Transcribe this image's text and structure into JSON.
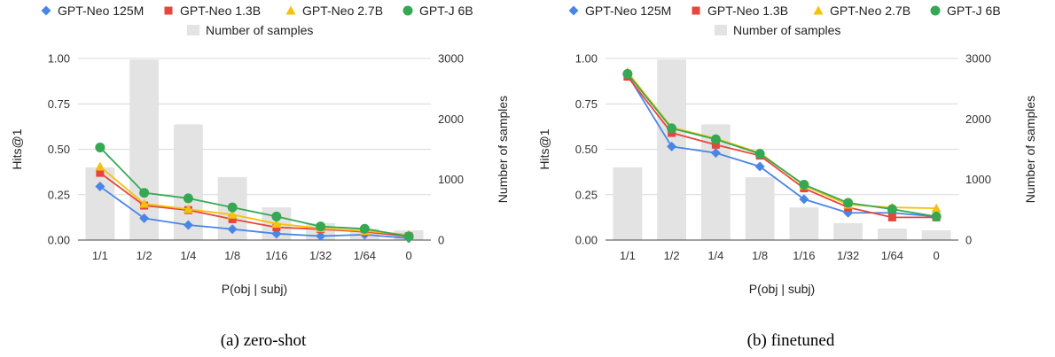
{
  "chart_data": [
    {
      "type": "bar+line",
      "caption": "(a) zero-shot",
      "categories": [
        "1/1",
        "1/2",
        "1/4",
        "1/8",
        "1/16",
        "1/32",
        "1/64",
        "0"
      ],
      "xlabel": "P(obj | subj)",
      "ylabel_left": "Hits@1",
      "ylabel_right": "Number of samples",
      "ylim_left": [
        0,
        1
      ],
      "ylim_right": [
        0,
        3000
      ],
      "yticks_left": [
        "0.00",
        "0.25",
        "0.50",
        "0.75",
        "1.00"
      ],
      "yticks_right": [
        "0",
        "1000",
        "2000",
        "3000"
      ],
      "bar_series": {
        "name": "Number of samples",
        "color": "#e3e3e3",
        "values": [
          1200,
          2980,
          1910,
          1040,
          540,
          280,
          190,
          160
        ]
      },
      "series": [
        {
          "name": "GPT-Neo 125M",
          "color": "#4a86e8",
          "marker": "diamond",
          "values": [
            0.295,
            0.12,
            0.083,
            0.06,
            0.035,
            0.022,
            0.03,
            0.01
          ]
        },
        {
          "name": "GPT-Neo 1.3B",
          "color": "#e8453c",
          "marker": "square",
          "values": [
            0.37,
            0.19,
            0.165,
            0.115,
            0.07,
            0.06,
            0.045,
            0.02
          ]
        },
        {
          "name": "GPT-Neo 2.7B",
          "color": "#f4c20d",
          "marker": "triangle",
          "values": [
            0.405,
            0.2,
            0.17,
            0.14,
            0.09,
            0.065,
            0.05,
            0.03
          ]
        },
        {
          "name": "GPT-J 6B",
          "color": "#34a853",
          "marker": "circle",
          "values": [
            0.51,
            0.26,
            0.23,
            0.18,
            0.13,
            0.075,
            0.062,
            0.02
          ]
        }
      ],
      "legend": "top"
    },
    {
      "type": "bar+line",
      "caption": "(b) finetuned",
      "categories": [
        "1/1",
        "1/2",
        "1/4",
        "1/8",
        "1/16",
        "1/32",
        "1/64",
        "0"
      ],
      "xlabel": "P(obj | subj)",
      "ylabel_left": "Hits@1",
      "ylabel_right": "Number of samples",
      "ylim_left": [
        0,
        1
      ],
      "ylim_right": [
        0,
        3000
      ],
      "yticks_left": [
        "0.00",
        "0.25",
        "0.50",
        "0.75",
        "1.00"
      ],
      "yticks_right": [
        "0",
        "1000",
        "2000",
        "3000"
      ],
      "bar_series": {
        "name": "Number of samples",
        "color": "#e3e3e3",
        "values": [
          1200,
          2980,
          1910,
          1040,
          540,
          280,
          190,
          160
        ]
      },
      "series": [
        {
          "name": "GPT-Neo 125M",
          "color": "#4a86e8",
          "marker": "diamond",
          "values": [
            0.91,
            0.515,
            0.48,
            0.405,
            0.225,
            0.15,
            0.15,
            0.13
          ]
        },
        {
          "name": "GPT-Neo 1.3B",
          "color": "#e8453c",
          "marker": "square",
          "values": [
            0.9,
            0.59,
            0.525,
            0.465,
            0.285,
            0.18,
            0.125,
            0.125
          ]
        },
        {
          "name": "GPT-Neo 2.7B",
          "color": "#f4c20d",
          "marker": "triangle",
          "values": [
            0.925,
            0.62,
            0.56,
            0.48,
            0.3,
            0.195,
            0.18,
            0.175
          ]
        },
        {
          "name": "GPT-J 6B",
          "color": "#34a853",
          "marker": "circle",
          "values": [
            0.915,
            0.615,
            0.555,
            0.475,
            0.305,
            0.205,
            0.17,
            0.13
          ]
        }
      ],
      "legend": "top"
    }
  ]
}
